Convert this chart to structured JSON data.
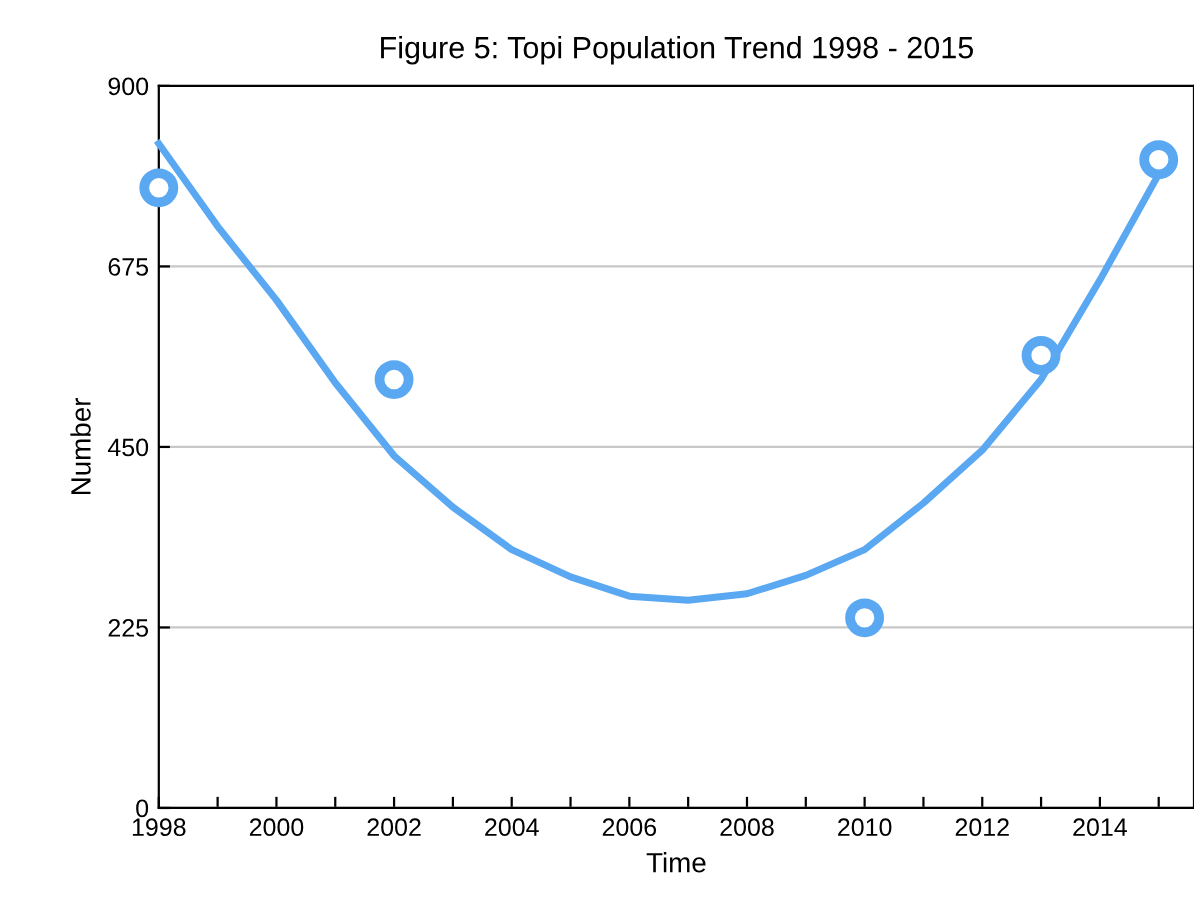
{
  "chart_data": {
    "type": "scatter",
    "title": "Figure 5: Topi Population Trend 1998 - 2015",
    "xlabel": "Time",
    "ylabel": "Number",
    "series": [
      {
        "color": "#5aa8f2",
        "marker": "circle",
        "x": [
          1998,
          2002,
          2010,
          2013,
          2015
        ],
        "values": [
          773,
          534,
          237,
          564,
          808
        ]
      },
      {
        "type": "line",
        "color": "#5aa8f2",
        "marker": "none",
        "x": [
          1998,
          1999,
          2000,
          2001,
          2002,
          2003,
          2004,
          2005,
          2006,
          2007,
          2008,
          2009,
          2010,
          2011,
          2012,
          2013,
          2014,
          2015
        ],
        "values": [
          828,
          725,
          633,
          530,
          439,
          375,
          322,
          288,
          264,
          259,
          267,
          290,
          322,
          380,
          446,
          534,
          658,
          790
        ]
      }
    ],
    "xlim": [
      1998,
      2015.6
    ],
    "xticks": [
      1998,
      {
        "value": 1999,
        "label": null
      },
      2000,
      {
        "value": 2001,
        "label": null
      },
      2002,
      {
        "value": 2003,
        "label": null
      },
      2004,
      {
        "value": 2005,
        "label": null
      },
      2006,
      {
        "value": 2007,
        "label": null
      },
      2008,
      {
        "value": 2009,
        "label": null
      },
      2010,
      {
        "value": 2011,
        "label": null
      },
      2012,
      {
        "value": 2013,
        "label": null
      },
      2014,
      {
        "value": 2015,
        "label": null
      }
    ],
    "ylim": [
      0,
      900
    ],
    "yticks": [
      0,
      225,
      450,
      675,
      900
    ],
    "grid": "y"
  }
}
